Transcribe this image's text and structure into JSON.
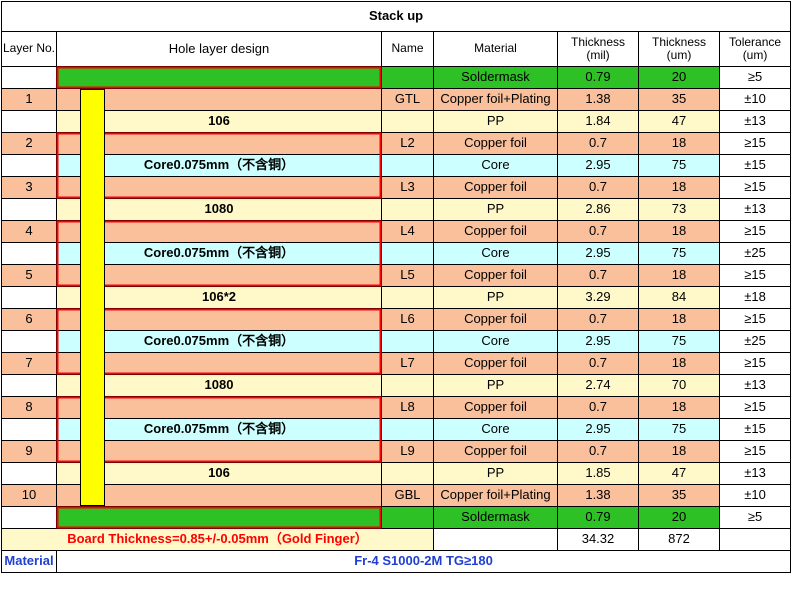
{
  "title": "Stack up",
  "headers": {
    "layer_no": "Layer No.",
    "hole_layer_design": "Hole layer design",
    "name": "Name",
    "material": "Material",
    "thickness_mil": "Thickness\n(mil)",
    "thickness_um": "Thickness\n(um)",
    "tolerance": "Tolerance\n(um)"
  },
  "rows": [
    {
      "type": "green",
      "layer": "",
      "label": "",
      "name": "",
      "material": "Soldermask",
      "mil": "0.79",
      "um": "20",
      "tol": "≥5"
    },
    {
      "type": "copper",
      "layer": "1",
      "label": "",
      "name": "GTL",
      "material": "Copper foil+Plating",
      "mil": "1.38",
      "um": "35",
      "tol": "±10"
    },
    {
      "type": "pp",
      "layer": "",
      "label": "106",
      "name": "",
      "material": "PP",
      "mil": "1.84",
      "um": "47",
      "tol": "±13"
    },
    {
      "type": "copper",
      "layer": "2",
      "label": "",
      "name": "L2",
      "material": "Copper foil",
      "mil": "0.7",
      "um": "18",
      "tol": "≥15"
    },
    {
      "type": "core",
      "layer": "",
      "label": "Core0.075mm（不含铜）",
      "name": "",
      "material": "Core",
      "mil": "2.95",
      "um": "75",
      "tol": "±15"
    },
    {
      "type": "copper",
      "layer": "3",
      "label": "",
      "name": "L3",
      "material": "Copper foil",
      "mil": "0.7",
      "um": "18",
      "tol": "≥15"
    },
    {
      "type": "pp",
      "layer": "",
      "label": "1080",
      "name": "",
      "material": "PP",
      "mil": "2.86",
      "um": "73",
      "tol": "±13"
    },
    {
      "type": "copper",
      "layer": "4",
      "label": "",
      "name": "L4",
      "material": "Copper foil",
      "mil": "0.7",
      "um": "18",
      "tol": "≥15"
    },
    {
      "type": "core",
      "layer": "",
      "label": "Core0.075mm（不含铜）",
      "name": "",
      "material": "Core",
      "mil": "2.95",
      "um": "75",
      "tol": "±25"
    },
    {
      "type": "copper",
      "layer": "5",
      "label": "",
      "name": "L5",
      "material": "Copper foil",
      "mil": "0.7",
      "um": "18",
      "tol": "≥15"
    },
    {
      "type": "pp",
      "layer": "",
      "label": "106*2",
      "name": "",
      "material": "PP",
      "mil": "3.29",
      "um": "84",
      "tol": "±18"
    },
    {
      "type": "copper",
      "layer": "6",
      "label": "",
      "name": "L6",
      "material": "Copper foil",
      "mil": "0.7",
      "um": "18",
      "tol": "≥15"
    },
    {
      "type": "core",
      "layer": "",
      "label": "Core0.075mm（不含铜）",
      "name": "",
      "material": "Core",
      "mil": "2.95",
      "um": "75",
      "tol": "±25"
    },
    {
      "type": "copper",
      "layer": "7",
      "label": "",
      "name": "L7",
      "material": "Copper foil",
      "mil": "0.7",
      "um": "18",
      "tol": "≥15"
    },
    {
      "type": "pp",
      "layer": "",
      "label": "1080",
      "name": "",
      "material": "PP",
      "mil": "2.74",
      "um": "70",
      "tol": "±13"
    },
    {
      "type": "copper",
      "layer": "8",
      "label": "",
      "name": "L8",
      "material": "Copper foil",
      "mil": "0.7",
      "um": "18",
      "tol": "≥15"
    },
    {
      "type": "core",
      "layer": "",
      "label": "Core0.075mm（不含铜）",
      "name": "",
      "material": "Core",
      "mil": "2.95",
      "um": "75",
      "tol": "±15"
    },
    {
      "type": "copper",
      "layer": "9",
      "label": "",
      "name": "L9",
      "material": "Copper foil",
      "mil": "0.7",
      "um": "18",
      "tol": "≥15"
    },
    {
      "type": "pp",
      "layer": "",
      "label": "106",
      "name": "",
      "material": "PP",
      "mil": "1.85",
      "um": "47",
      "tol": "±13"
    },
    {
      "type": "copper",
      "layer": "10",
      "label": "",
      "name": "GBL",
      "material": "Copper foil+Plating",
      "mil": "1.38",
      "um": "35",
      "tol": "±10"
    },
    {
      "type": "green",
      "layer": "",
      "label": "",
      "name": "",
      "material": "Soldermask",
      "mil": "0.79",
      "um": "20",
      "tol": "≥5"
    }
  ],
  "total": {
    "board_thickness": "Board Thickness=0.85+/-0.05mm（Gold Finger）",
    "mil": "34.32",
    "um": "872"
  },
  "footer": {
    "material": "Material",
    "spec": "Fr-4  S1000-2M  TG≥180"
  },
  "colors": {
    "soldermask": "#2ec126",
    "copper": "#f9c09b",
    "pp": "#fff9c9",
    "core": "#ccffff",
    "via": "#ffff00",
    "border_red": "#ff0000",
    "board_text": "#ff0000",
    "footer_text": "#1f3fd0"
  }
}
